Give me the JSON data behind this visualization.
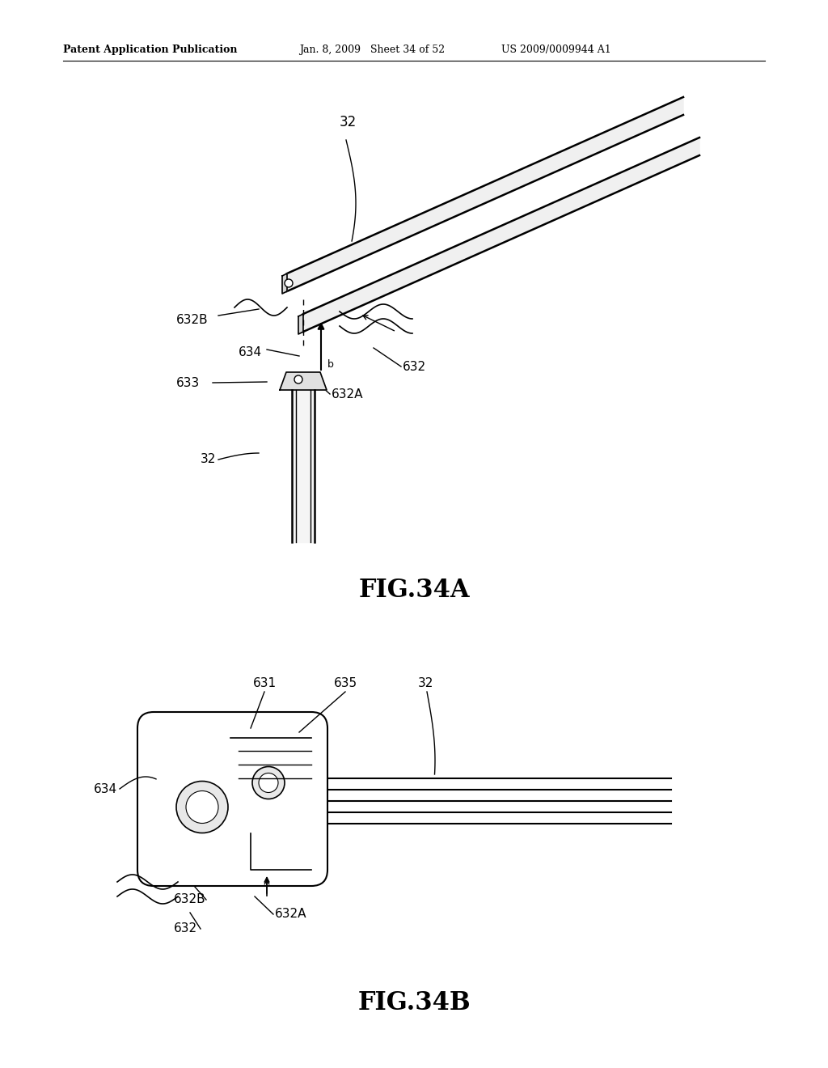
{
  "bg_color": "#ffffff",
  "line_color": "#000000",
  "header_left": "Patent Application Publication",
  "header_mid": "Jan. 8, 2009   Sheet 34 of 52",
  "header_right": "US 2009/0009944 A1",
  "fig34a_caption": "FIG.34A",
  "fig34b_caption": "FIG.34B"
}
